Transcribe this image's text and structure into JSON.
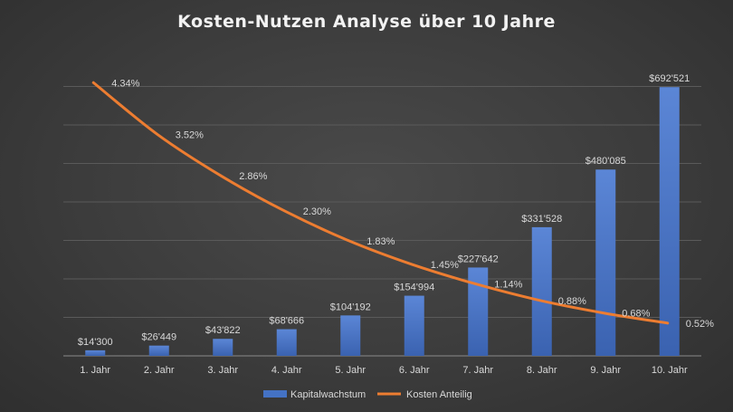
{
  "chart_data": {
    "type": "bar",
    "title": "Kosten-Nutzen Analyse über 10 Jahre",
    "categories": [
      "1. Jahr",
      "2. Jahr",
      "3. Jahr",
      "4. Jahr",
      "5. Jahr",
      "6. Jahr",
      "7. Jahr",
      "8. Jahr",
      "9. Jahr",
      "10. Jahr"
    ],
    "series": [
      {
        "name": "Kapitalwachstum",
        "type": "bar",
        "color": "#4472c4",
        "values": [
          14300,
          26449,
          43822,
          68666,
          104192,
          154994,
          227642,
          331528,
          480085,
          692521
        ],
        "labels": [
          "$14'300",
          "$26'449",
          "$43'822",
          "$68'666",
          "$104'192",
          "$154'994",
          "$227'642",
          "$331'528",
          "$480'085",
          "$692'521"
        ]
      },
      {
        "name": "Kosten Anteilig",
        "type": "line",
        "color": "#ed7d31",
        "values": [
          4.34,
          3.52,
          2.86,
          2.3,
          1.83,
          1.45,
          1.14,
          0.88,
          0.68,
          0.52
        ],
        "labels": [
          "4.34%",
          "3.52%",
          "2.86%",
          "2.30%",
          "1.83%",
          "1.45%",
          "1.14%",
          "0.88%",
          "0.68%",
          "0.52%"
        ]
      }
    ],
    "ylim_bars": [
      0,
      700000
    ],
    "ylim_line": [
      0,
      5
    ],
    "grid": true,
    "legend": "bottom"
  }
}
